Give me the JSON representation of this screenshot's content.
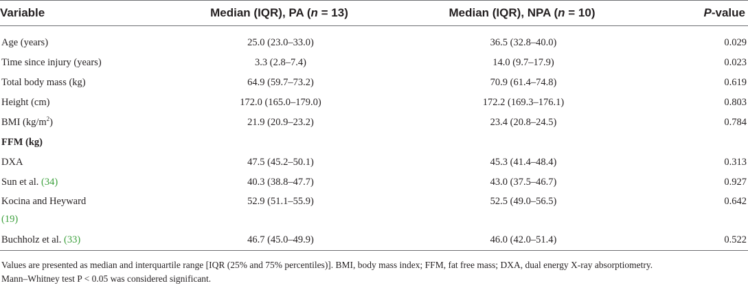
{
  "headers": {
    "variable": "Variable",
    "pa_prefix": "Median (IQR), PA (",
    "pa_n": "n",
    "pa_suffix": " = 13)",
    "npa_prefix": "Median (IQR), NPA (",
    "npa_n": "n",
    "npa_suffix": " = 10)",
    "p_italic": "P",
    "p_suffix": "-value"
  },
  "rows": [
    {
      "variable": "Age (years)",
      "pa": "25.0 (23.0–33.0)",
      "npa": "36.5 (32.8–40.0)",
      "p": "0.029"
    },
    {
      "variable": "Time since injury (years)",
      "pa": "3.3 (2.8–7.4)",
      "npa": "14.0 (9.7–17.9)",
      "p": "0.023"
    },
    {
      "variable": "Total body mass (kg)",
      "pa": "64.9 (59.7–73.2)",
      "npa": "70.9 (61.4–74.8)",
      "p": "0.619"
    },
    {
      "variable": "Height (cm)",
      "pa": "172.0 (165.0–179.0)",
      "npa": "172.2 (169.3–176.1)",
      "p": "0.803"
    },
    {
      "variable": "BMI (kg/m",
      "variable_sup": "2",
      "variable_end": ")",
      "pa": "21.9 (20.9–23.2)",
      "npa": "23.4 (20.8–24.5)",
      "p": "0.784"
    },
    {
      "variable": "FFM (kg)"
    },
    {
      "variable": "DXA",
      "pa": "47.5 (45.2–50.1)",
      "npa": "45.3 (41.4–48.4)",
      "p": "0.313"
    },
    {
      "variable": "Sun et al. ",
      "ref": "(34)",
      "pa": "40.3 (38.8–47.7)",
      "npa": "43.0 (37.5–46.7)",
      "p": "0.927"
    },
    {
      "variable": "Kocina and Heyward",
      "ref": "(19)",
      "pa": "52.9 (51.1–55.9)",
      "npa": "52.5 (49.0–56.5)",
      "p": "0.642"
    },
    {
      "variable": "Buchholz et al. ",
      "ref": "(33)",
      "pa": "46.7 (45.0–49.9)",
      "npa": "46.0 (42.0–51.4)",
      "p": "0.522"
    }
  ],
  "footnote": {
    "line1": "Values are presented as median and interquartile range [IQR (25% and 75% percentiles)]. BMI, body mass index; FFM, fat free mass; DXA, dual energy X-ray absorptiometry.",
    "line2": "Mann–Whitney test P < 0.05 was considered significant."
  }
}
